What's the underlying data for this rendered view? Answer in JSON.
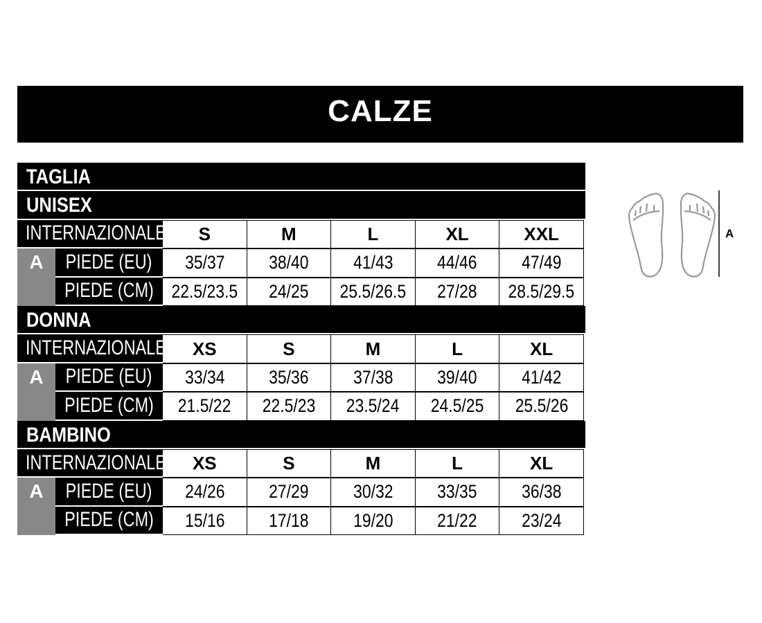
{
  "title": "CALZE",
  "header_label": "TAGLIA",
  "row_labels": {
    "international": "INTERNAZIONALE",
    "eu": "PIEDE (EU)",
    "cm": "PIEDE (CM)",
    "measure": "A"
  },
  "sections": [
    {
      "name": "UNISEX",
      "sizes": [
        "S",
        "M",
        "L",
        "XL",
        "XXL"
      ],
      "eu": [
        "35/37",
        "38/40",
        "41/43",
        "44/46",
        "47/49"
      ],
      "cm": [
        "22.5/23.5",
        "24/25",
        "25.5/26.5",
        "27/28",
        "28.5/29.5"
      ]
    },
    {
      "name": "DONNA",
      "sizes": [
        "XS",
        "S",
        "M",
        "L",
        "XL"
      ],
      "eu": [
        "33/34",
        "35/36",
        "37/38",
        "39/40",
        "41/42"
      ],
      "cm": [
        "21.5/22",
        "22.5/23",
        "23.5/24",
        "24.5/25",
        "25.5/26"
      ]
    },
    {
      "name": "BAMBINO",
      "sizes": [
        "XS",
        "S",
        "M",
        "L",
        "XL"
      ],
      "eu": [
        "24/26",
        "27/29",
        "30/32",
        "33/35",
        "36/38"
      ],
      "cm": [
        "15/16",
        "17/18",
        "19/20",
        "21/22",
        "23/24"
      ]
    }
  ],
  "diagram": {
    "measure_label": "A",
    "icon": "feet-soles-icon"
  },
  "colors": {
    "header_bg": "#000000",
    "measure_col": "#888888",
    "outline": "#999999"
  }
}
